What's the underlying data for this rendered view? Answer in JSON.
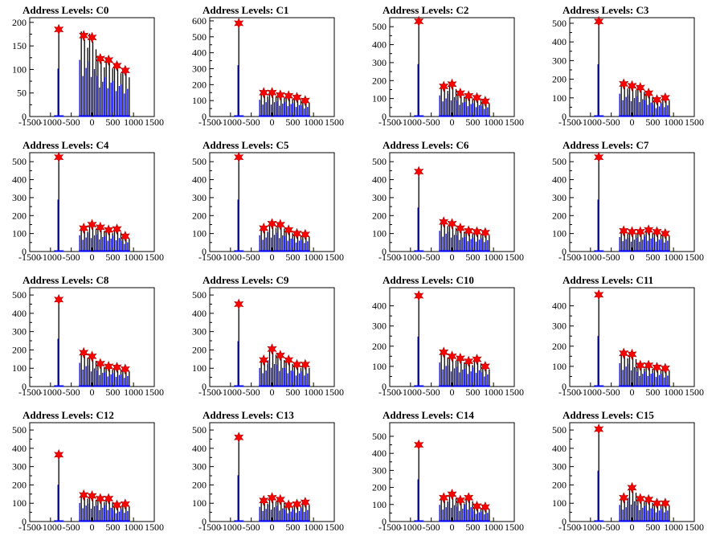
{
  "chart_data": [
    {
      "type": "bar",
      "title": "Address Levels: C0",
      "xlim": [
        -1500,
        1500
      ],
      "ylim": [
        0,
        210
      ],
      "yticks": [
        0,
        50,
        100,
        150,
        200
      ],
      "xticks": [
        -1500,
        -1000,
        -500,
        0,
        500,
        1000,
        1500
      ],
      "peaks": {
        "x": [
          -800,
          -200,
          0,
          200,
          400,
          600,
          800
        ],
        "y": [
          185,
          172,
          168,
          123,
          120,
          108,
          98
        ]
      }
    },
    {
      "type": "bar",
      "title": "Address Levels: C1",
      "xlim": [
        -1500,
        1500
      ],
      "ylim": [
        0,
        620
      ],
      "yticks": [
        0,
        100,
        200,
        300,
        400,
        500,
        600
      ],
      "xticks": [
        -1500,
        -1000,
        -500,
        0,
        500,
        1000,
        1500
      ],
      "peaks": {
        "x": [
          -800,
          -200,
          0,
          200,
          400,
          600,
          800
        ],
        "y": [
          585,
          150,
          150,
          135,
          130,
          120,
          100
        ]
      }
    },
    {
      "type": "bar",
      "title": "Address Levels: C2",
      "xlim": [
        -1500,
        1500
      ],
      "ylim": [
        0,
        550
      ],
      "yticks": [
        0,
        100,
        200,
        300,
        400,
        500
      ],
      "xticks": [
        -1500,
        -1000,
        -500,
        0,
        500,
        1000,
        1500
      ],
      "peaks": {
        "x": [
          -800,
          -200,
          0,
          200,
          400,
          600,
          800
        ],
        "y": [
          530,
          168,
          180,
          130,
          115,
          105,
          85
        ]
      }
    },
    {
      "type": "bar",
      "title": "Address Levels: C3",
      "xlim": [
        -1500,
        1500
      ],
      "ylim": [
        0,
        530
      ],
      "yticks": [
        0,
        100,
        200,
        300,
        400,
        500
      ],
      "xticks": [
        -1500,
        -1000,
        -500,
        0,
        500,
        1000,
        1500
      ],
      "peaks": {
        "x": [
          -800,
          -200,
          0,
          200,
          400,
          600,
          800
        ],
        "y": [
          510,
          175,
          165,
          155,
          125,
          90,
          100
        ]
      }
    },
    {
      "type": "bar",
      "title": "Address Levels: C4",
      "xlim": [
        -1500,
        1500
      ],
      "ylim": [
        0,
        550
      ],
      "yticks": [
        0,
        100,
        200,
        300,
        400,
        500
      ],
      "xticks": [
        -1500,
        -1000,
        -500,
        0,
        500,
        1000,
        1500
      ],
      "peaks": {
        "x": [
          -800,
          -200,
          0,
          200,
          400,
          600,
          800
        ],
        "y": [
          525,
          130,
          150,
          135,
          120,
          125,
          85
        ]
      }
    },
    {
      "type": "bar",
      "title": "Address Levels: C5",
      "xlim": [
        -1500,
        1500
      ],
      "ylim": [
        0,
        550
      ],
      "yticks": [
        0,
        100,
        200,
        300,
        400,
        500
      ],
      "xticks": [
        -1500,
        -1000,
        -500,
        0,
        500,
        1000,
        1500
      ],
      "peaks": {
        "x": [
          -800,
          -200,
          0,
          200,
          400,
          600,
          800
        ],
        "y": [
          525,
          130,
          155,
          150,
          120,
          100,
          95
        ]
      }
    },
    {
      "type": "bar",
      "title": "Address Levels: C6",
      "xlim": [
        -1500,
        1500
      ],
      "ylim": [
        0,
        550
      ],
      "yticks": [
        0,
        100,
        200,
        300,
        400,
        500
      ],
      "xticks": [
        -1500,
        -1000,
        -500,
        0,
        500,
        1000,
        1500
      ],
      "peaks": {
        "x": [
          -800,
          -200,
          0,
          200,
          400,
          600,
          800
        ],
        "y": [
          445,
          165,
          155,
          130,
          115,
          110,
          105
        ]
      }
    },
    {
      "type": "bar",
      "title": "Address Levels: C7",
      "xlim": [
        -1500,
        1500
      ],
      "ylim": [
        0,
        550
      ],
      "yticks": [
        0,
        100,
        200,
        300,
        400,
        500
      ],
      "xticks": [
        -1500,
        -1000,
        -500,
        0,
        500,
        1000,
        1500
      ],
      "peaks": {
        "x": [
          -800,
          -200,
          0,
          200,
          400,
          600,
          800
        ],
        "y": [
          525,
          115,
          110,
          110,
          120,
          110,
          100
        ]
      }
    },
    {
      "type": "bar",
      "title": "Address Levels: C8",
      "xlim": [
        -1500,
        1500
      ],
      "ylim": [
        0,
        540
      ],
      "yticks": [
        0,
        100,
        200,
        300,
        400,
        500
      ],
      "xticks": [
        -1500,
        -1000,
        -500,
        0,
        500,
        1000,
        1500
      ],
      "peaks": {
        "x": [
          -800,
          -200,
          0,
          200,
          400,
          600,
          800
        ],
        "y": [
          475,
          185,
          165,
          125,
          110,
          105,
          95
        ]
      }
    },
    {
      "type": "bar",
      "title": "Address Levels: C9",
      "xlim": [
        -1500,
        1500
      ],
      "ylim": [
        0,
        540
      ],
      "yticks": [
        0,
        100,
        200,
        300,
        400,
        500
      ],
      "xticks": [
        -1500,
        -1000,
        -500,
        0,
        500,
        1000,
        1500
      ],
      "peaks": {
        "x": [
          -800,
          -200,
          0,
          200,
          400,
          600,
          800
        ],
        "y": [
          450,
          145,
          205,
          170,
          145,
          120,
          120
        ]
      }
    },
    {
      "type": "bar",
      "title": "Address Levels: C10",
      "xlim": [
        -1500,
        1500
      ],
      "ylim": [
        0,
        490
      ],
      "yticks": [
        0,
        100,
        200,
        300,
        400
      ],
      "xticks": [
        -1500,
        -1000,
        -500,
        0,
        500,
        1000,
        1500
      ],
      "peaks": {
        "x": [
          -800,
          -200,
          0,
          200,
          400,
          600,
          800
        ],
        "y": [
          450,
          170,
          150,
          140,
          125,
          135,
          100
        ]
      }
    },
    {
      "type": "bar",
      "title": "Address Levels: C11",
      "xlim": [
        -1500,
        1500
      ],
      "ylim": [
        0,
        490
      ],
      "yticks": [
        0,
        100,
        200,
        300,
        400
      ],
      "xticks": [
        -1500,
        -1000,
        -500,
        0,
        500,
        1000,
        1500
      ],
      "peaks": {
        "x": [
          -800,
          -200,
          0,
          200,
          400,
          600,
          800
        ],
        "y": [
          455,
          165,
          160,
          105,
          105,
          95,
          90
        ]
      }
    },
    {
      "type": "bar",
      "title": "Address Levels: C12",
      "xlim": [
        -1500,
        1500
      ],
      "ylim": [
        0,
        540
      ],
      "yticks": [
        0,
        100,
        200,
        300,
        400,
        500
      ],
      "xticks": [
        -1500,
        -1000,
        -500,
        0,
        500,
        1000,
        1500
      ],
      "peaks": {
        "x": [
          -800,
          -200,
          0,
          200,
          400,
          600,
          800
        ],
        "y": [
          365,
          145,
          140,
          125,
          125,
          90,
          95
        ]
      }
    },
    {
      "type": "bar",
      "title": "Address Levels: C13",
      "xlim": [
        -1500,
        1500
      ],
      "ylim": [
        0,
        540
      ],
      "yticks": [
        0,
        100,
        200,
        300,
        400,
        500
      ],
      "xticks": [
        -1500,
        -1000,
        -500,
        0,
        500,
        1000,
        1500
      ],
      "peaks": {
        "x": [
          -800,
          -200,
          0,
          200,
          400,
          600,
          800
        ],
        "y": [
          460,
          115,
          130,
          120,
          90,
          95,
          105
        ]
      }
    },
    {
      "type": "bar",
      "title": "Address Levels: C14",
      "xlim": [
        -1500,
        1500
      ],
      "ylim": [
        0,
        580
      ],
      "yticks": [
        0,
        100,
        200,
        300,
        400,
        500
      ],
      "xticks": [
        -1500,
        -1000,
        -500,
        0,
        500,
        1000,
        1500
      ],
      "peaks": {
        "x": [
          -800,
          -200,
          0,
          200,
          400,
          600,
          800
        ],
        "y": [
          450,
          140,
          160,
          125,
          140,
          90,
          85
        ]
      }
    },
    {
      "type": "bar",
      "title": "Address Levels: C15",
      "xlim": [
        -1500,
        1500
      ],
      "ylim": [
        0,
        540
      ],
      "yticks": [
        0,
        100,
        200,
        300,
        400,
        500
      ],
      "xticks": [
        -1500,
        -1000,
        -500,
        0,
        500,
        1000,
        1500
      ],
      "peaks": {
        "x": [
          -800,
          -200,
          0,
          200,
          400,
          600,
          800
        ],
        "y": [
          505,
          130,
          185,
          125,
          120,
          100,
          100
        ]
      }
    }
  ],
  "colors": {
    "histogram": "#0000ff",
    "spike": "#000000",
    "marker": "#ff0000",
    "axis": "#000000",
    "background": "#ffffff"
  },
  "marker_icon": "red-star-marker"
}
